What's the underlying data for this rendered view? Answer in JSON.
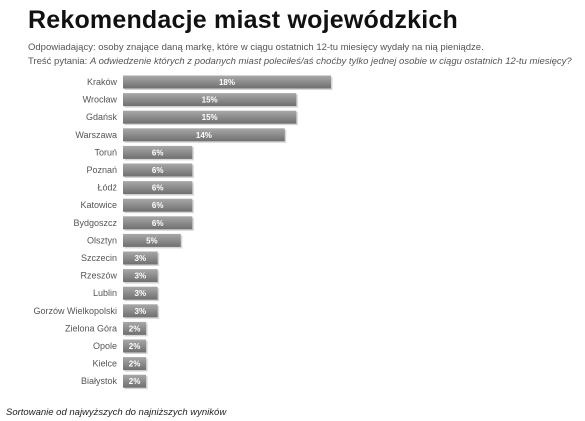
{
  "header": {
    "title": "Rekomendacje miast wojewódzkich",
    "respondents": "Odpowiadający:  osoby  znające daną markę, które w ciągu ostatnich  12-tu  miesięcy  wydały na nią pieniądze.",
    "question_prefix": "Treść pytania: ",
    "question_text": "A odwiedzenie których  z podanych  miast poleciłeś/aś  choćby tylko jednej osobie w ciągu ostatnich 12-tu miesięcy?"
  },
  "footnote": "Sortowanie od najwyższych do najniższych wyników",
  "chart_data": {
    "type": "bar",
    "orientation": "horizontal",
    "categories": [
      "Kraków",
      "Wrocław",
      "Gdańsk",
      "Warszawa",
      "Toruń",
      "Poznań",
      "Łódź",
      "Katowice",
      "Bydgoszcz",
      "Olsztyn",
      "Szczecin",
      "Rzeszów",
      "Lublin",
      "Gorzów Wielkopolski",
      "Zielona Góra",
      "Opole",
      "Kielce",
      "Białystok"
    ],
    "values": [
      18,
      15,
      15,
      14,
      6,
      6,
      6,
      6,
      6,
      5,
      3,
      3,
      3,
      3,
      2,
      2,
      2,
      2
    ],
    "value_labels": [
      "18%",
      "15%",
      "15%",
      "14%",
      "6%",
      "6%",
      "6%",
      "6%",
      "6%",
      "5%",
      "3%",
      "3%",
      "3%",
      "3%",
      "2%",
      "2%",
      "2%",
      "2%"
    ],
    "xlim": [
      0,
      18
    ],
    "grid": false,
    "bar_color": "#8c8c8c"
  }
}
